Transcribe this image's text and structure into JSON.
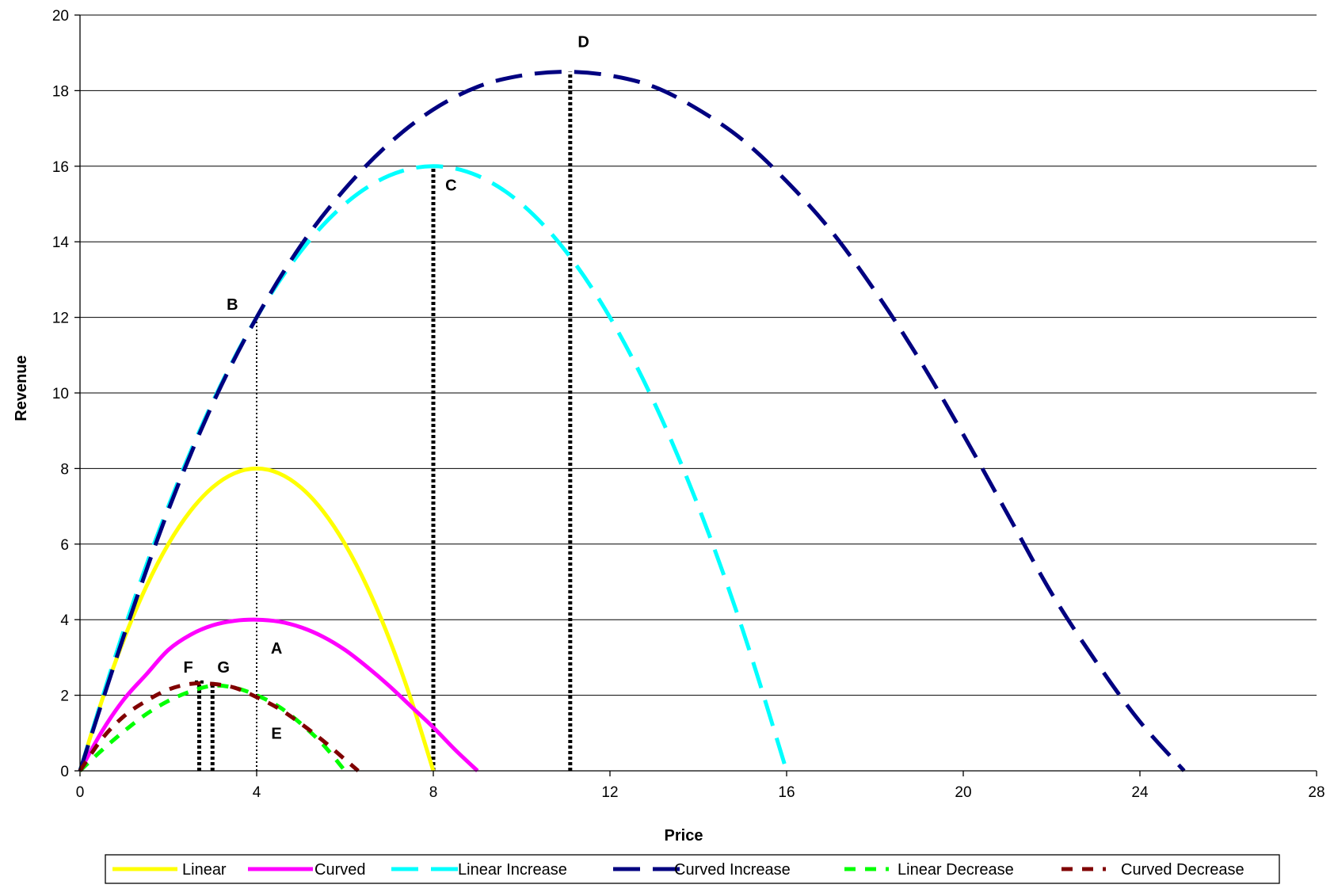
{
  "chart_data": {
    "type": "line",
    "title": "",
    "xlabel": "Price",
    "ylabel": "Revenue",
    "xlim": [
      0,
      28
    ],
    "ylim": [
      0,
      20
    ],
    "xticks": [
      0,
      4,
      8,
      12,
      16,
      20,
      24,
      28
    ],
    "yticks": [
      0,
      2,
      4,
      6,
      8,
      10,
      12,
      14,
      16,
      18,
      20
    ],
    "grid": "horizontal",
    "legend_position": "bottom",
    "series": [
      {
        "name": "Linear",
        "color": "#ffff00",
        "style": "solid",
        "x": [
          0,
          0.5,
          1,
          1.5,
          2,
          2.5,
          3,
          3.5,
          4,
          4.5,
          5,
          5.5,
          6,
          6.5,
          7,
          7.5,
          8
        ],
        "y": [
          0,
          1.875,
          3.5,
          4.875,
          6,
          6.875,
          7.5,
          7.875,
          8,
          7.875,
          7.5,
          6.875,
          6,
          4.875,
          3.5,
          1.875,
          0
        ]
      },
      {
        "name": "Curved",
        "color": "#ff00ff",
        "style": "solid",
        "x": [
          0,
          0.5,
          1,
          1.5,
          2,
          2.5,
          3,
          3.5,
          4,
          4.5,
          5,
          5.5,
          6,
          6.5,
          7,
          7.5,
          8,
          8.5,
          9
        ],
        "y": [
          0,
          1.05,
          1.9,
          2.55,
          3.2,
          3.6,
          3.85,
          3.97,
          4,
          3.95,
          3.8,
          3.55,
          3.2,
          2.75,
          2.25,
          1.7,
          1.15,
          0.55,
          0
        ]
      },
      {
        "name": "Linear Increase",
        "color": "#00ffff",
        "style": "dashed",
        "x": [
          0,
          1,
          2,
          3,
          4,
          5,
          6,
          7,
          8,
          9,
          10,
          11,
          12,
          13,
          14,
          15,
          16
        ],
        "y": [
          0,
          3.75,
          7,
          9.75,
          12,
          13.75,
          15,
          15.75,
          16,
          15.75,
          15,
          13.75,
          12,
          9.75,
          7,
          3.75,
          0
        ]
      },
      {
        "name": "Curved Increase",
        "color": "#000080",
        "style": "dashed",
        "x": [
          0,
          1,
          2,
          3,
          4,
          5,
          6,
          7,
          8,
          9,
          10,
          11,
          12,
          13,
          14,
          15,
          16,
          17,
          18,
          19,
          20,
          21,
          22,
          23,
          24,
          25
        ],
        "y": [
          0,
          3.6,
          6.9,
          9.7,
          12,
          13.9,
          15.4,
          16.6,
          17.5,
          18.1,
          18.4,
          18.5,
          18.4,
          18.1,
          17.5,
          16.7,
          15.6,
          14.3,
          12.7,
          10.9,
          8.9,
          6.8,
          4.7,
          2.9,
          1.3,
          0
        ]
      },
      {
        "name": "Linear Decrease",
        "color": "#00ff00",
        "style": "dashed",
        "x": [
          0,
          0.5,
          1,
          1.5,
          2,
          2.5,
          3,
          3.5,
          4,
          4.5,
          5,
          5.5,
          6
        ],
        "y": [
          0,
          0.55,
          1.05,
          1.5,
          1.85,
          2.1,
          2.25,
          2.2,
          2.0,
          1.7,
          1.25,
          0.7,
          0
        ]
      },
      {
        "name": "Curved Decrease",
        "color": "#800000",
        "style": "dashed",
        "x": [
          0,
          0.5,
          1,
          1.5,
          2,
          2.5,
          3,
          3.5,
          4,
          4.5,
          5,
          5.5,
          6,
          6.3
        ],
        "y": [
          0,
          0.85,
          1.45,
          1.85,
          2.15,
          2.3,
          2.3,
          2.2,
          1.95,
          1.65,
          1.25,
          0.8,
          0.3,
          0
        ]
      }
    ],
    "annotations": [
      {
        "label": "A",
        "x": 4.45,
        "y": 3.25
      },
      {
        "label": "B",
        "x": 3.45,
        "y": 12.35
      },
      {
        "label": "C",
        "x": 8.4,
        "y": 15.5
      },
      {
        "label": "D",
        "x": 11.4,
        "y": 19.3
      },
      {
        "label": "E",
        "x": 4.45,
        "y": 1.0
      },
      {
        "label": "F",
        "x": 2.45,
        "y": 2.75
      },
      {
        "label": "G",
        "x": 3.25,
        "y": 2.75
      }
    ],
    "reference_lines": [
      {
        "x": 4,
        "y_top": 12,
        "style": "thin-dotted"
      },
      {
        "x": 8,
        "y_top": 16,
        "style": "thick-dotted"
      },
      {
        "x": 11.1,
        "y_top": 18.5,
        "style": "thick-dotted"
      },
      {
        "x": 2.7,
        "y_top": 2.35,
        "style": "thick-dotted"
      },
      {
        "x": 3,
        "y_top": 2.35,
        "style": "thick-dotted"
      }
    ]
  }
}
